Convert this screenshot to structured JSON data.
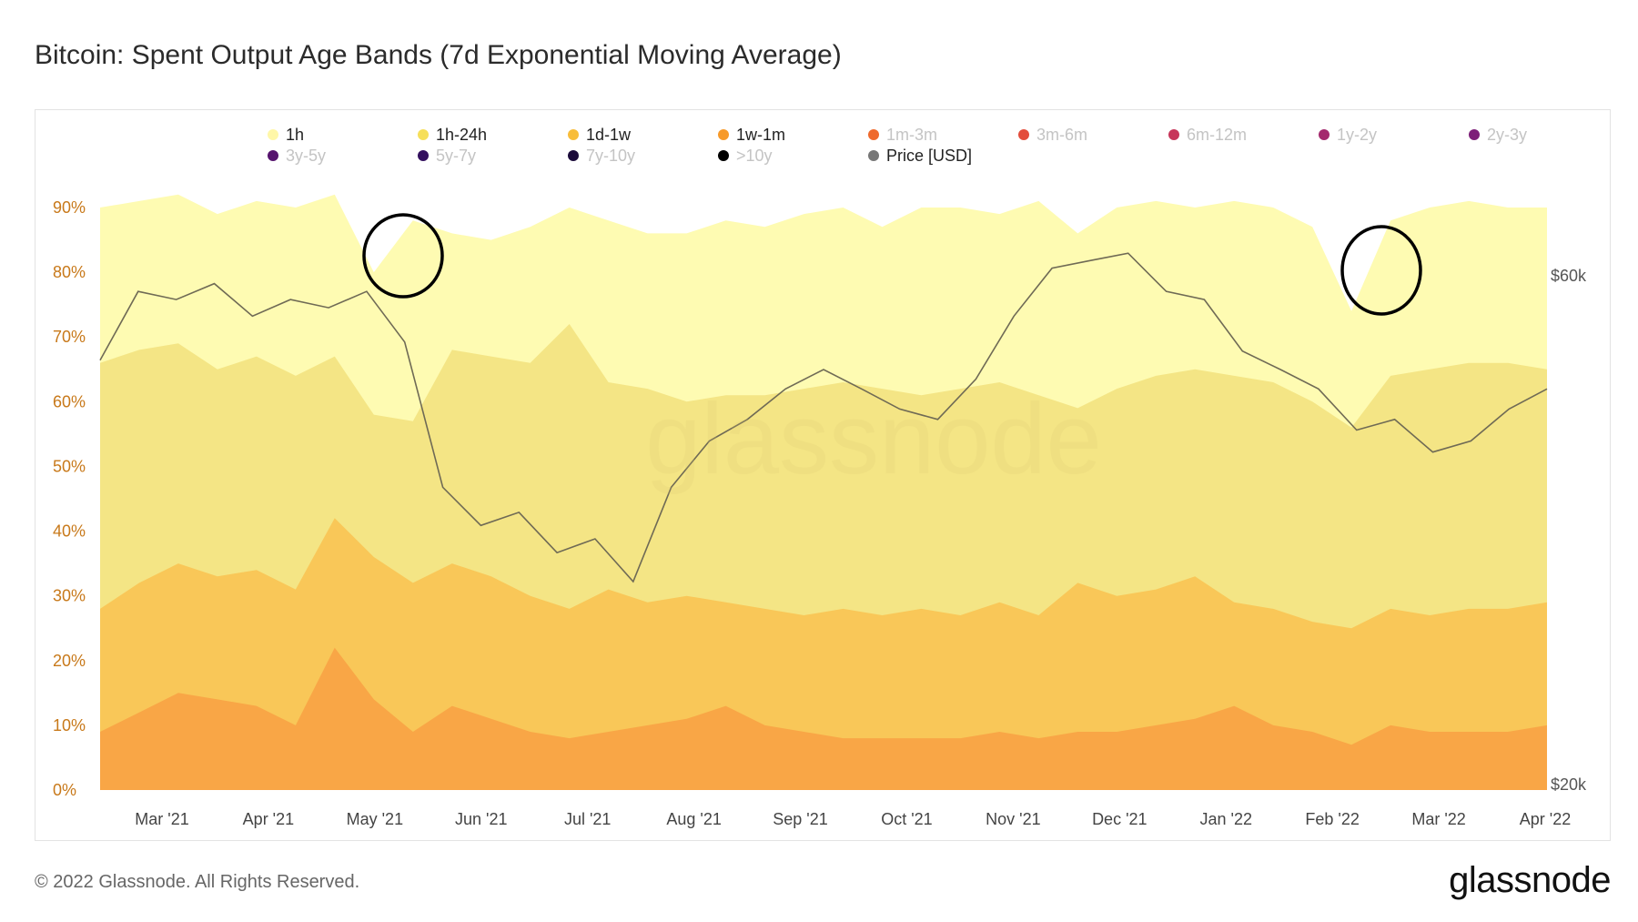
{
  "title": "Bitcoin: Spent Output Age Bands (7d Exponential Moving Average)",
  "footer": "© 2022 Glassnode. All Rights Reserved.",
  "brand": "glassnode",
  "watermark": "glassnode",
  "chart_data": {
    "type": "area",
    "stacked": true,
    "title": "Bitcoin: Spent Output Age Bands (7d Exponential Moving Average)",
    "x_labels": [
      "Mar '21",
      "Apr '21",
      "May '21",
      "Jun '21",
      "Jul '21",
      "Aug '21",
      "Sep '21",
      "Oct '21",
      "Nov '21",
      "Dec '21",
      "Jan '22",
      "Feb '22",
      "Mar '22",
      "Apr '22"
    ],
    "y_left": {
      "min": 0,
      "max": 90,
      "ticks": [
        "0%",
        "10%",
        "20%",
        "30%",
        "40%",
        "50%",
        "60%",
        "70%",
        "80%",
        "90%"
      ]
    },
    "y_right": {
      "ticks": [
        "$20k",
        "$60k"
      ],
      "scale": "log"
    },
    "legend": [
      {
        "label": "1h",
        "color": "#fff7a8",
        "active": true
      },
      {
        "label": "1h-24h",
        "color": "#f6df5a",
        "active": true
      },
      {
        "label": "1d-1w",
        "color": "#f8bd3a",
        "active": true
      },
      {
        "label": "1w-1m",
        "color": "#f79a2a",
        "active": true
      },
      {
        "label": "1m-3m",
        "color": "#ef6a2d",
        "active": false
      },
      {
        "label": "3m-6m",
        "color": "#e34d3c",
        "active": false
      },
      {
        "label": "6m-12m",
        "color": "#c7365a",
        "active": false
      },
      {
        "label": "1y-2y",
        "color": "#a42a6e",
        "active": false
      },
      {
        "label": "2y-3y",
        "color": "#7d1f78",
        "active": false
      },
      {
        "label": "3y-5y",
        "color": "#56146e",
        "active": false
      },
      {
        "label": "5y-7y",
        "color": "#33105e",
        "active": false
      },
      {
        "label": "7y-10y",
        "color": "#1b0b3a",
        "active": false
      },
      {
        ">10y": "",
        "label": ">10y",
        "color": "#000000",
        "active": false
      },
      {
        "label": "Price [USD]",
        "color": "#777777",
        "active": true
      }
    ],
    "series": [
      {
        "name": "1w-1m",
        "unit": "cumulative %",
        "values": [
          9,
          12,
          15,
          14,
          13,
          10,
          22,
          14,
          9,
          13,
          11,
          9,
          8,
          9,
          10,
          11,
          13,
          10,
          9,
          8,
          8,
          8,
          8,
          9,
          8,
          9,
          9,
          10,
          11,
          13,
          10,
          9,
          7,
          10,
          9,
          9,
          9,
          10
        ]
      },
      {
        "name": "1d-1w",
        "unit": "cumulative %",
        "values": [
          28,
          32,
          35,
          33,
          34,
          31,
          42,
          36,
          32,
          35,
          33,
          30,
          28,
          31,
          29,
          30,
          29,
          28,
          27,
          28,
          27,
          28,
          27,
          29,
          27,
          32,
          30,
          31,
          33,
          29,
          28,
          26,
          25,
          28,
          27,
          28,
          28,
          29
        ]
      },
      {
        "name": "1h-24h",
        "unit": "cumulative %",
        "values": [
          66,
          68,
          69,
          65,
          67,
          64,
          67,
          58,
          57,
          68,
          67,
          66,
          72,
          63,
          62,
          60,
          61,
          61,
          62,
          63,
          62,
          61,
          62,
          63,
          61,
          59,
          62,
          64,
          65,
          64,
          63,
          60,
          56,
          64,
          65,
          66,
          66,
          65
        ]
      },
      {
        "name": "1h",
        "unit": "cumulative %",
        "values": [
          90,
          91,
          92,
          89,
          91,
          90,
          92,
          80,
          88,
          86,
          85,
          87,
          90,
          88,
          86,
          86,
          88,
          87,
          89,
          90,
          87,
          90,
          90,
          89,
          91,
          86,
          90,
          91,
          90,
          91,
          90,
          87,
          74,
          88,
          90,
          91,
          90,
          90
        ]
      }
    ],
    "price": {
      "name": "Price [USD]",
      "values": [
        50000,
        58000,
        57000,
        59000,
        55000,
        57000,
        56000,
        58000,
        52000,
        38000,
        35000,
        36000,
        33000,
        34000,
        31000,
        38000,
        42000,
        44000,
        47000,
        49000,
        47000,
        45000,
        44000,
        48000,
        55000,
        61000,
        62000,
        63000,
        58000,
        57000,
        51000,
        49000,
        47000,
        43000,
        44000,
        41000,
        42000,
        45000,
        47000
      ]
    },
    "annotations": [
      "circle near May '21 dip in 1h band",
      "circle near Feb '22 dip in 1h band"
    ]
  }
}
